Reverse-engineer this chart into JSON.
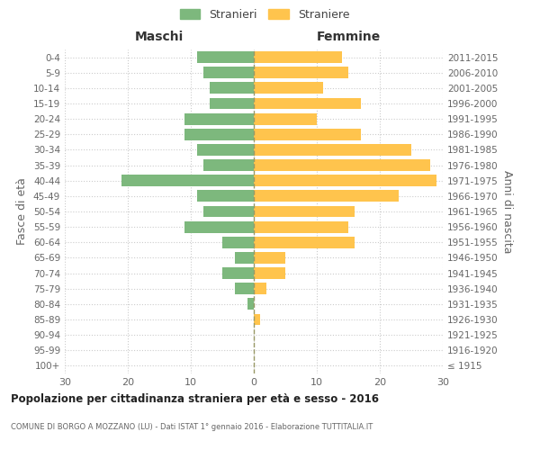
{
  "age_groups": [
    "0-4",
    "5-9",
    "10-14",
    "15-19",
    "20-24",
    "25-29",
    "30-34",
    "35-39",
    "40-44",
    "45-49",
    "50-54",
    "55-59",
    "60-64",
    "65-69",
    "70-74",
    "75-79",
    "80-84",
    "85-89",
    "90-94",
    "95-99",
    "100+"
  ],
  "birth_years": [
    "2011-2015",
    "2006-2010",
    "2001-2005",
    "1996-2000",
    "1991-1995",
    "1986-1990",
    "1981-1985",
    "1976-1980",
    "1971-1975",
    "1966-1970",
    "1961-1965",
    "1956-1960",
    "1951-1955",
    "1946-1950",
    "1941-1945",
    "1936-1940",
    "1931-1935",
    "1926-1930",
    "1921-1925",
    "1916-1920",
    "≤ 1915"
  ],
  "maschi": [
    9,
    8,
    7,
    7,
    11,
    11,
    9,
    8,
    21,
    9,
    8,
    11,
    5,
    3,
    5,
    3,
    1,
    0,
    0,
    0,
    0
  ],
  "femmine": [
    14,
    15,
    11,
    17,
    10,
    17,
    25,
    28,
    29,
    23,
    16,
    15,
    16,
    5,
    5,
    2,
    0,
    1,
    0,
    0,
    0
  ],
  "color_maschi": "#7db87d",
  "color_femmine": "#ffc44d",
  "title_maschi": "Maschi",
  "title_femmine": "Femmine",
  "legend_maschi": "Stranieri",
  "legend_femmine": "Straniere",
  "ylabel_left": "Fasce di età",
  "ylabel_right": "Anni di nascita",
  "main_title": "Popolazione per cittadinanza straniera per età e sesso - 2016",
  "sub_title": "COMUNE DI BORGO A MOZZANO (LU) - Dati ISTAT 1° gennaio 2016 - Elaborazione TUTTITALIA.IT",
  "xlim": 30,
  "background_color": "#ffffff",
  "grid_color": "#cccccc",
  "grid_linestyle": ":",
  "dashed_line_color": "#999966"
}
